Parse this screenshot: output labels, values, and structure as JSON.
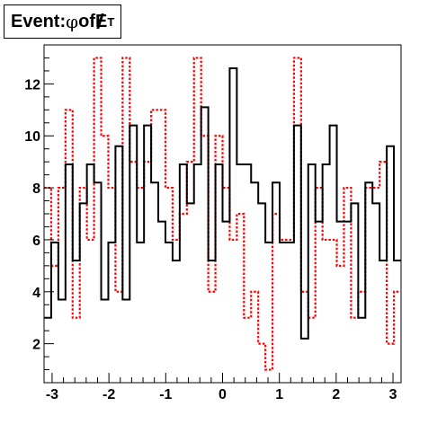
{
  "chart_data": {
    "type": "histogram",
    "title_prefix": "Event: ",
    "title_symbol": "φ",
    "title_middle": " of ",
    "title_met": "E",
    "title_sub": "T",
    "xlim": [
      -3.1416,
      3.1416
    ],
    "ylim": [
      0.5,
      13.5
    ],
    "x_ticks": [
      -3,
      -2,
      -1,
      0,
      1,
      2,
      3
    ],
    "x_tick_labels": [
      "-3",
      "-2",
      "-1",
      "0",
      "1",
      "2",
      "3"
    ],
    "y_ticks": [
      2,
      4,
      6,
      8,
      10,
      12
    ],
    "y_tick_labels": [
      "2",
      "4",
      "6",
      "8",
      "10",
      "12"
    ],
    "grid": false,
    "series": [
      {
        "color": "#000000",
        "line_style": "solid",
        "values": [
          3.0,
          5.9,
          3.7,
          8.9,
          5.2,
          7.4,
          8.9,
          8.2,
          3.7,
          5.9,
          9.6,
          3.7,
          10.4,
          5.9,
          10.4,
          8.2,
          6.7,
          5.9,
          5.2,
          8.9,
          7.4,
          8.9,
          11.1,
          5.2,
          8.9,
          6.7,
          12.6,
          8.9,
          8.9,
          8.2,
          7.4,
          5.9,
          8.2,
          5.9,
          5.9,
          10.4,
          2.2,
          8.9,
          6.7,
          8.9,
          10.4,
          6.7,
          6.7,
          7.4,
          3.0,
          8.2,
          7.4,
          5.2,
          9.6,
          5.2
        ]
      },
      {
        "color": "#ff0000",
        "line_style": "dotted",
        "values": [
          8.0,
          5.0,
          8.0,
          11.0,
          3.0,
          8.0,
          6.0,
          13.0,
          10.0,
          8.0,
          4.0,
          13.0,
          9.0,
          8.0,
          9.0,
          11.0,
          11.0,
          8.0,
          6.0,
          7.0,
          9.0,
          13.0,
          10.0,
          4.0,
          10.0,
          8.0,
          6.0,
          7.0,
          3.0,
          4.0,
          2.0,
          1.0,
          7.0,
          6.0,
          6.0,
          13.0,
          4.0,
          3.0,
          8.0,
          6.0,
          6.0,
          5.0,
          8.0,
          3.0,
          4.0,
          8.0,
          8.0,
          9.0,
          2.0,
          4.0
        ]
      }
    ]
  }
}
